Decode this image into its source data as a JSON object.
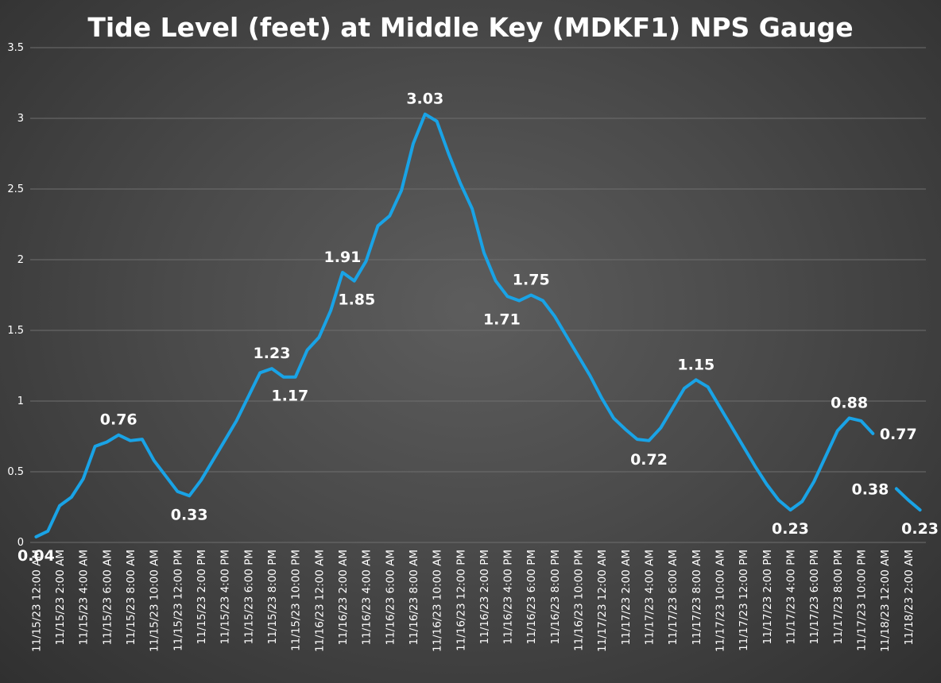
{
  "chart_data": {
    "type": "line",
    "title": "Tide Level (feet) at Middle Key (MDKF1) NPS Gauge",
    "ylim": [
      0,
      3.5
    ],
    "yticks": [
      0,
      0.5,
      1,
      1.5,
      2,
      2.5,
      3,
      3.5
    ],
    "ytick_labels": [
      "0",
      "0.5",
      "1",
      "1.5",
      "2",
      "2.5",
      "3",
      "3.5"
    ],
    "grid": true,
    "legend": "none",
    "line_color": "#19a3e6",
    "categories": [
      "11/15/23 12:00 AM",
      "11/15/23 1:00 AM",
      "11/15/23 2:00 AM",
      "11/15/23 3:00 AM",
      "11/15/23 4:00 AM",
      "11/15/23 5:00 AM",
      "11/15/23 6:00 AM",
      "11/15/23 7:00 AM",
      "11/15/23 8:00 AM",
      "11/15/23 9:00 AM",
      "11/15/23 10:00 AM",
      "11/15/23 11:00 AM",
      "11/15/23 12:00 PM",
      "11/15/23 1:00 PM",
      "11/15/23 2:00 PM",
      "11/15/23 3:00 PM",
      "11/15/23 4:00 PM",
      "11/15/23 5:00 PM",
      "11/15/23 6:00 PM",
      "11/15/23 7:00 PM",
      "11/15/23 8:00 PM",
      "11/15/23 9:00 PM",
      "11/15/23 10:00 PM",
      "11/15/23 11:00 PM",
      "11/16/23 12:00 AM",
      "11/16/23 1:00 AM",
      "11/16/23 2:00 AM",
      "11/16/23 3:00 AM",
      "11/16/23 4:00 AM",
      "11/16/23 5:00 AM",
      "11/16/23 6:00 AM",
      "11/16/23 7:00 AM",
      "11/16/23 8:00 AM",
      "11/16/23 9:00 AM",
      "11/16/23 10:00 AM",
      "11/16/23 11:00 AM",
      "11/16/23 12:00 PM",
      "11/16/23 1:00 PM",
      "11/16/23 2:00 PM",
      "11/16/23 3:00 PM",
      "11/16/23 4:00 PM",
      "11/16/23 5:00 PM",
      "11/16/23 6:00 PM",
      "11/16/23 7:00 PM",
      "11/16/23 8:00 PM",
      "11/16/23 9:00 PM",
      "11/16/23 10:00 PM",
      "11/16/23 11:00 PM",
      "11/17/23 12:00 AM",
      "11/17/23 1:00 AM",
      "11/17/23 2:00 AM",
      "11/17/23 3:00 AM",
      "11/17/23 4:00 AM",
      "11/17/23 5:00 AM",
      "11/17/23 6:00 AM",
      "11/17/23 7:00 AM",
      "11/17/23 8:00 AM",
      "11/17/23 9:00 AM",
      "11/17/23 10:00 AM",
      "11/17/23 11:00 AM",
      "11/17/23 12:00 PM",
      "11/17/23 1:00 PM",
      "11/17/23 2:00 PM",
      "11/17/23 3:00 PM",
      "11/17/23 4:00 PM",
      "11/17/23 5:00 PM",
      "11/17/23 6:00 PM",
      "11/17/23 7:00 PM",
      "11/17/23 8:00 PM",
      "11/17/23 9:00 PM",
      "11/17/23 10:00 PM",
      "11/17/23 11:00 PM",
      "11/18/23 12:00 AM",
      "11/18/23 1:00 AM",
      "11/18/23 2:00 AM",
      "11/18/23 3:00 AM"
    ],
    "x_tick_labels": [
      "11/15/23 12:00 AM",
      "11/15/23 2:00 AM",
      "11/15/23 4:00 AM",
      "11/15/23 6:00 AM",
      "11/15/23 8:00 AM",
      "11/15/23 10:00 AM",
      "11/15/23 12:00 PM",
      "11/15/23 2:00 PM",
      "11/15/23 4:00 PM",
      "11/15/23 6:00 PM",
      "11/15/23 8:00 PM",
      "11/15/23 10:00 PM",
      "11/16/23 12:00 AM",
      "11/16/23 2:00 AM",
      "11/16/23 4:00 AM",
      "11/16/23 6:00 AM",
      "11/16/23 8:00 AM",
      "11/16/23 10:00 AM",
      "11/16/23 12:00 PM",
      "11/16/23 2:00 PM",
      "11/16/23 4:00 PM",
      "11/16/23 6:00 PM",
      "11/16/23 8:00 PM",
      "11/16/23 10:00 PM",
      "11/17/23 12:00 AM",
      "11/17/23 2:00 AM",
      "11/17/23 4:00 AM",
      "11/17/23 6:00 AM",
      "11/17/23 8:00 AM",
      "11/17/23 10:00 AM",
      "11/17/23 12:00 PM",
      "11/17/23 2:00 PM",
      "11/17/23 4:00 PM",
      "11/17/23 6:00 PM",
      "11/17/23 8:00 PM",
      "11/17/23 10:00 PM",
      "11/18/23 12:00 AM",
      "11/18/23 2:00 AM"
    ],
    "values": [
      0.04,
      0.08,
      0.26,
      0.32,
      0.45,
      0.68,
      0.71,
      0.76,
      0.72,
      0.73,
      0.58,
      0.47,
      0.36,
      0.33,
      0.44,
      0.58,
      0.72,
      0.86,
      1.03,
      1.2,
      1.23,
      1.17,
      1.17,
      1.36,
      1.45,
      1.64,
      1.91,
      1.85,
      1.99,
      2.24,
      2.31,
      2.49,
      2.82,
      3.03,
      2.98,
      2.75,
      2.54,
      2.36,
      2.05,
      1.85,
      1.74,
      1.71,
      1.75,
      1.71,
      1.6,
      1.46,
      1.32,
      1.18,
      1.02,
      0.88,
      0.8,
      0.73,
      0.72,
      0.81,
      0.95,
      1.09,
      1.15,
      1.1,
      0.96,
      0.82,
      0.68,
      0.54,
      0.41,
      0.3,
      0.23,
      0.29,
      0.43,
      0.61,
      0.79,
      0.88,
      0.86,
      0.77,
      null,
      0.38,
      0.3,
      0.23
    ],
    "data_labels": [
      {
        "index": 0,
        "text": "0.04"
      },
      {
        "index": 7,
        "text": "0.76"
      },
      {
        "index": 13,
        "text": "0.33"
      },
      {
        "index": 20,
        "text": "1.23"
      },
      {
        "index": 21,
        "text": "1.17"
      },
      {
        "index": 26,
        "text": "1.91"
      },
      {
        "index": 27,
        "text": "1.85"
      },
      {
        "index": 33,
        "text": "3.03"
      },
      {
        "index": 41,
        "text": "1.71"
      },
      {
        "index": 42,
        "text": "1.75"
      },
      {
        "index": 52,
        "text": "0.72"
      },
      {
        "index": 56,
        "text": "1.15"
      },
      {
        "index": 64,
        "text": "0.23"
      },
      {
        "index": 69,
        "text": "0.88"
      },
      {
        "index": 71,
        "text": "0.77"
      },
      {
        "index": 73,
        "text": "0.38"
      },
      {
        "index": 75,
        "text": "0.23"
      }
    ]
  }
}
